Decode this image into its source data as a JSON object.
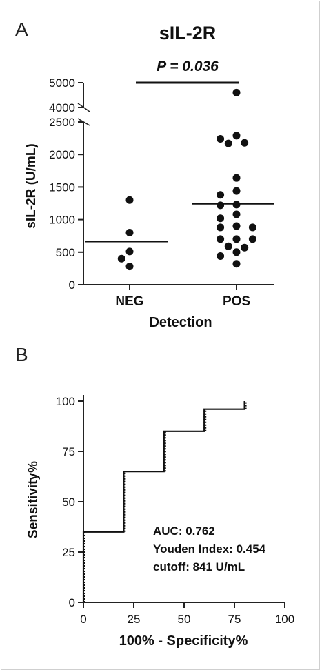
{
  "panel_a": {
    "panel_label": "A",
    "title": "sIL-2R",
    "annotation": "P = 0.036",
    "ylabel": "sIL-2R (U/mL)",
    "xlabel": "Detection",
    "upper_ticks": [
      "5000",
      "4000"
    ],
    "lower_ticks": [
      "0",
      "500",
      "1000",
      "1500",
      "2000",
      "2500"
    ]
  },
  "panel_b": {
    "panel_label": "B",
    "ylabel": "Sensitivity%",
    "xlabel": "100% - Specificity%",
    "x_ticks": [
      "0",
      "25",
      "50",
      "75",
      "100"
    ],
    "y_ticks": [
      "0",
      "25",
      "50",
      "75",
      "100"
    ],
    "annotations": [
      "AUC: 0.762",
      "Youden Index: 0.454",
      "cutoff: 841 U/mL"
    ]
  },
  "chart_data": [
    {
      "type": "scatter",
      "title": "sIL-2R",
      "xlabel": "Detection",
      "ylabel": "sIL-2R (U/mL)",
      "categories": [
        "NEG",
        "POS"
      ],
      "y_axis_break": {
        "lower_range": [
          0,
          2500
        ],
        "upper_range": [
          4000,
          5000
        ]
      },
      "series": [
        {
          "category": "NEG",
          "values": [
            1300,
            800,
            510,
            400,
            280
          ],
          "mean": 665
        },
        {
          "category": "POS",
          "values": [
            4600,
            2290,
            2240,
            2180,
            2170,
            1640,
            1440,
            1380,
            1230,
            1220,
            1080,
            1020,
            880,
            880,
            900,
            700,
            700,
            700,
            590,
            570,
            500,
            440,
            320
          ],
          "mean": 1245
        }
      ],
      "significance": {
        "label": "P = 0.036",
        "between": [
          "NEG",
          "POS"
        ]
      }
    },
    {
      "type": "line",
      "subtype": "roc_curve",
      "xlabel": "100% - Specificity%",
      "ylabel": "Sensitivity%",
      "xlim": [
        0,
        100
      ],
      "ylim": [
        0,
        100
      ],
      "points": [
        [
          0,
          0
        ],
        [
          0,
          35
        ],
        [
          20,
          35
        ],
        [
          20,
          65
        ],
        [
          40,
          65
        ],
        [
          40,
          85
        ],
        [
          60,
          85
        ],
        [
          60,
          96
        ],
        [
          80,
          96
        ],
        [
          80,
          100
        ]
      ],
      "annotations": [
        "AUC: 0.762",
        "Youden Index: 0.454",
        "cutoff: 841 U/mL"
      ]
    }
  ]
}
